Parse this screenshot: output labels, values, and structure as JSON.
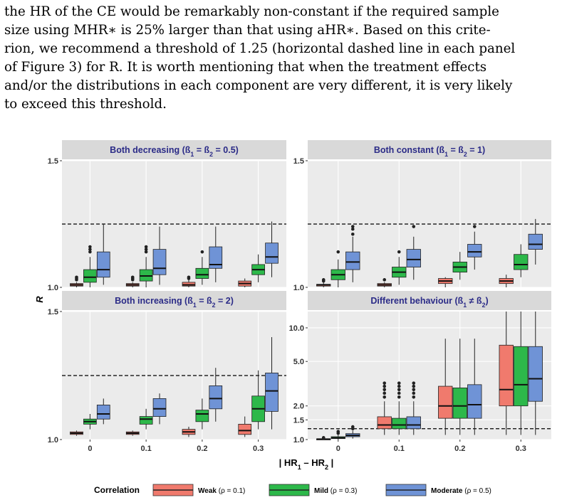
{
  "text_lines": [
    "the HR of the CE would be remarkably non-constant if the required sample",
    "size using MHR∗ is 25% larger than that using aHR∗. Based on this crite-",
    "rion, we recommend a threshold of 1.25 (horizontal dashed line in each panel",
    "of Figure 3) for R. It is worth mentioning that when the treatment effects",
    "and/or the distributions in each component are very different, it is very likely",
    "to exceed this threshold."
  ],
  "colors": {
    "weak": "#f07a6d",
    "mild": "#2db84a",
    "moderate": "#6f93d6",
    "panel_bg": "#ebebeb",
    "strip_bg": "#d9d9d9",
    "strip_text": "#2b2b87",
    "grid": "#ffffff"
  },
  "chart_data": {
    "type": "boxplot",
    "xlabel": "| HR1 – HR2 |",
    "ylabel": "R",
    "threshold": 1.25,
    "x_categories": [
      "0",
      "0.1",
      "0.2",
      "0.3"
    ],
    "legend": {
      "title": "Correlation",
      "position": "bottom",
      "entries": [
        {
          "key": "weak",
          "label": "Weak",
          "sublabel": "(ρ = 0.1)"
        },
        {
          "key": "mild",
          "label": "Mild",
          "sublabel": "(ρ = 0.3)"
        },
        {
          "key": "moderate",
          "label": "Moderate",
          "sublabel": "(ρ = 0.5)"
        }
      ]
    },
    "panels": [
      {
        "title": "Both decreasing  (ß1 = ß2 = 0.5)",
        "scale": "linear",
        "ylim": [
          1.0,
          1.5
        ],
        "yticks": [
          {
            "v": 1.0,
            "label": "1.0"
          },
          {
            "v": 1.5,
            "label": "1.5"
          }
        ],
        "show_xticks": false,
        "groups": [
          {
            "x": "0",
            "boxes": [
              {
                "series": "weak",
                "whislo": 1.0,
                "q1": 1.005,
                "med": 1.01,
                "q3": 1.015,
                "whishi": 1.02,
                "outliers": [
                  1.03,
                  1.035,
                  1.04
                ]
              },
              {
                "series": "mild",
                "whislo": 1.0,
                "q1": 1.02,
                "med": 1.04,
                "q3": 1.07,
                "whishi": 1.12,
                "outliers": [
                  1.14,
                  1.15,
                  1.16
                ]
              },
              {
                "series": "moderate",
                "whislo": 1.01,
                "q1": 1.04,
                "med": 1.07,
                "q3": 1.14,
                "whishi": 1.25,
                "outliers": []
              }
            ]
          },
          {
            "x": "0.1",
            "boxes": [
              {
                "series": "weak",
                "whislo": 1.0,
                "q1": 1.005,
                "med": 1.01,
                "q3": 1.015,
                "whishi": 1.02,
                "outliers": [
                  1.03,
                  1.035,
                  1.04
                ]
              },
              {
                "series": "mild",
                "whislo": 1.0,
                "q1": 1.025,
                "med": 1.045,
                "q3": 1.07,
                "whishi": 1.12,
                "outliers": [
                  1.14,
                  1.15,
                  1.16
                ]
              },
              {
                "series": "moderate",
                "whislo": 1.01,
                "q1": 1.05,
                "med": 1.075,
                "q3": 1.15,
                "whishi": 1.24,
                "outliers": []
              }
            ]
          },
          {
            "x": "0.2",
            "boxes": [
              {
                "series": "weak",
                "whislo": 1.0,
                "q1": 1.005,
                "med": 1.01,
                "q3": 1.02,
                "whishi": 1.03,
                "outliers": [
                  1.035,
                  1.04
                ]
              },
              {
                "series": "mild",
                "whislo": 1.01,
                "q1": 1.035,
                "med": 1.05,
                "q3": 1.075,
                "whishi": 1.12,
                "outliers": [
                  1.14
                ]
              },
              {
                "series": "moderate",
                "whislo": 1.02,
                "q1": 1.075,
                "med": 1.09,
                "q3": 1.16,
                "whishi": 1.24,
                "outliers": []
              }
            ]
          },
          {
            "x": "0.3",
            "boxes": [
              {
                "series": "weak",
                "whislo": 1.0,
                "q1": 1.005,
                "med": 1.015,
                "q3": 1.025,
                "whishi": 1.035,
                "outliers": []
              },
              {
                "series": "mild",
                "whislo": 1.02,
                "q1": 1.05,
                "med": 1.07,
                "q3": 1.09,
                "whishi": 1.13,
                "outliers": []
              },
              {
                "series": "moderate",
                "whislo": 1.04,
                "q1": 1.095,
                "med": 1.12,
                "q3": 1.175,
                "whishi": 1.26,
                "outliers": []
              }
            ]
          }
        ]
      },
      {
        "title": "Both constant  (ß1 = ß2 = 1)",
        "scale": "linear",
        "ylim": [
          1.0,
          1.5
        ],
        "yticks": [
          {
            "v": 1.0,
            "label": "1.0"
          },
          {
            "v": 1.5,
            "label": "1.5"
          }
        ],
        "show_xticks": false,
        "groups": [
          {
            "x": "0",
            "boxes": [
              {
                "series": "weak",
                "whislo": 1.0,
                "q1": 1.005,
                "med": 1.01,
                "q3": 1.012,
                "whishi": 1.02,
                "outliers": [
                  1.025,
                  1.03
                ]
              },
              {
                "series": "mild",
                "whislo": 1.0,
                "q1": 1.03,
                "med": 1.05,
                "q3": 1.07,
                "whishi": 1.11,
                "outliers": [
                  1.14
                ]
              },
              {
                "series": "moderate",
                "whislo": 1.02,
                "q1": 1.07,
                "med": 1.1,
                "q3": 1.14,
                "whishi": 1.2,
                "outliers": [
                  1.21,
                  1.23,
                  1.24
                ]
              }
            ]
          },
          {
            "x": "0.1",
            "boxes": [
              {
                "series": "weak",
                "whislo": 1.0,
                "q1": 1.005,
                "med": 1.01,
                "q3": 1.015,
                "whishi": 1.02,
                "outliers": [
                  1.03
                ]
              },
              {
                "series": "mild",
                "whislo": 1.01,
                "q1": 1.04,
                "med": 1.06,
                "q3": 1.08,
                "whishi": 1.12,
                "outliers": [
                  1.14
                ]
              },
              {
                "series": "moderate",
                "whislo": 1.03,
                "q1": 1.08,
                "med": 1.11,
                "q3": 1.15,
                "whishi": 1.2,
                "outliers": [
                  1.24
                ]
              }
            ]
          },
          {
            "x": "0.2",
            "boxes": [
              {
                "series": "weak",
                "whislo": 1.0,
                "q1": 1.015,
                "med": 1.025,
                "q3": 1.035,
                "whishi": 1.04,
                "outliers": []
              },
              {
                "series": "mild",
                "whislo": 1.03,
                "q1": 1.06,
                "med": 1.08,
                "q3": 1.1,
                "whishi": 1.14,
                "outliers": []
              },
              {
                "series": "moderate",
                "whislo": 1.07,
                "q1": 1.12,
                "med": 1.14,
                "q3": 1.17,
                "whishi": 1.22,
                "outliers": [
                  1.24
                ]
              }
            ]
          },
          {
            "x": "0.3",
            "boxes": [
              {
                "series": "weak",
                "whislo": 1.0,
                "q1": 1.015,
                "med": 1.025,
                "q3": 1.035,
                "whishi": 1.05,
                "outliers": []
              },
              {
                "series": "mild",
                "whislo": 1.04,
                "q1": 1.07,
                "med": 1.09,
                "q3": 1.13,
                "whishi": 1.17,
                "outliers": []
              },
              {
                "series": "moderate",
                "whislo": 1.09,
                "q1": 1.15,
                "med": 1.17,
                "q3": 1.21,
                "whishi": 1.27,
                "outliers": []
              }
            ]
          }
        ]
      },
      {
        "title": "Both increasing  (ß1 = ß2 = 2)",
        "scale": "linear",
        "ylim": [
          1.0,
          1.5
        ],
        "yticks": [
          {
            "v": 1.0,
            "label": "1.0"
          },
          {
            "v": 1.5,
            "label": "1.5"
          }
        ],
        "show_xticks": true,
        "groups": [
          {
            "x": "0",
            "boxes": [
              {
                "series": "weak",
                "whislo": 1.015,
                "q1": 1.02,
                "med": 1.025,
                "q3": 1.03,
                "whishi": 1.035,
                "outliers": []
              },
              {
                "series": "mild",
                "whislo": 1.04,
                "q1": 1.06,
                "med": 1.07,
                "q3": 1.08,
                "whishi": 1.1,
                "outliers": []
              },
              {
                "series": "moderate",
                "whislo": 1.06,
                "q1": 1.08,
                "med": 1.1,
                "q3": 1.135,
                "whishi": 1.16,
                "outliers": []
              }
            ]
          },
          {
            "x": "0.1",
            "boxes": [
              {
                "series": "weak",
                "whislo": 1.015,
                "q1": 1.02,
                "med": 1.025,
                "q3": 1.03,
                "whishi": 1.035,
                "outliers": []
              },
              {
                "series": "mild",
                "whislo": 1.04,
                "q1": 1.06,
                "med": 1.08,
                "q3": 1.09,
                "whishi": 1.12,
                "outliers": []
              },
              {
                "series": "moderate",
                "whislo": 1.06,
                "q1": 1.09,
                "med": 1.12,
                "q3": 1.16,
                "whishi": 1.18,
                "outliers": []
              }
            ]
          },
          {
            "x": "0.2",
            "boxes": [
              {
                "series": "weak",
                "whislo": 1.01,
                "q1": 1.02,
                "med": 1.03,
                "q3": 1.04,
                "whishi": 1.05,
                "outliers": []
              },
              {
                "series": "mild",
                "whislo": 1.04,
                "q1": 1.07,
                "med": 1.1,
                "q3": 1.115,
                "whishi": 1.16,
                "outliers": []
              },
              {
                "series": "moderate",
                "whislo": 1.07,
                "q1": 1.12,
                "med": 1.16,
                "q3": 1.21,
                "whishi": 1.28,
                "outliers": []
              }
            ]
          },
          {
            "x": "0.3",
            "boxes": [
              {
                "series": "weak",
                "whislo": 1.01,
                "q1": 1.02,
                "med": 1.035,
                "q3": 1.06,
                "whishi": 1.09,
                "outliers": []
              },
              {
                "series": "mild",
                "whislo": 1.04,
                "q1": 1.07,
                "med": 1.12,
                "q3": 1.17,
                "whishi": 1.27,
                "outliers": []
              },
              {
                "series": "moderate",
                "whislo": 1.04,
                "q1": 1.11,
                "med": 1.19,
                "q3": 1.26,
                "whishi": 1.4,
                "outliers": []
              }
            ]
          }
        ]
      },
      {
        "title": "Different behaviour (ß1 ≠ ß2)",
        "scale": "log",
        "ylim": [
          1.0,
          14.0
        ],
        "yticks": [
          {
            "v": 1.0,
            "label": "1.0"
          },
          {
            "v": 1.5,
            "label": "1.5"
          },
          {
            "v": 2.0,
            "label": "2.0"
          },
          {
            "v": 5.0,
            "label": "5.0"
          },
          {
            "v": 10.0,
            "label": "10.0"
          }
        ],
        "show_xticks": true,
        "groups": [
          {
            "x": "0",
            "boxes": [
              {
                "series": "weak",
                "whislo": 1.0,
                "q1": 1.005,
                "med": 1.01,
                "q3": 1.015,
                "whishi": 1.02,
                "outliers": [
                  1.03,
                  1.04
                ]
              },
              {
                "series": "mild",
                "whislo": 1.0,
                "q1": 1.02,
                "med": 1.035,
                "q3": 1.06,
                "whishi": 1.1,
                "outliers": [
                  1.14,
                  1.18
                ]
              },
              {
                "series": "moderate",
                "whislo": 1.02,
                "q1": 1.06,
                "med": 1.09,
                "q3": 1.13,
                "whishi": 1.2,
                "outliers": [
                  1.25,
                  1.3
                ]
              }
            ]
          },
          {
            "x": "0.1",
            "boxes": [
              {
                "series": "weak",
                "whislo": 1.1,
                "q1": 1.25,
                "med": 1.35,
                "q3": 1.6,
                "whishi": 2.2,
                "outliers": [
                  2.4,
                  2.6,
                  2.8,
                  3.0,
                  3.2
                ]
              },
              {
                "series": "mild",
                "whislo": 1.1,
                "q1": 1.25,
                "med": 1.35,
                "q3": 1.55,
                "whishi": 2.2,
                "outliers": [
                  2.4,
                  2.6,
                  2.8,
                  3.0,
                  3.2
                ]
              },
              {
                "series": "moderate",
                "whislo": 1.1,
                "q1": 1.25,
                "med": 1.35,
                "q3": 1.6,
                "whishi": 2.2,
                "outliers": [
                  2.4,
                  2.6,
                  2.8,
                  3.0,
                  3.2
                ]
              }
            ]
          },
          {
            "x": "0.2",
            "boxes": [
              {
                "series": "weak",
                "whislo": 1.1,
                "q1": 1.55,
                "med": 2.0,
                "q3": 3.0,
                "whishi": 8.0,
                "outliers": []
              },
              {
                "series": "mild",
                "whislo": 1.1,
                "q1": 1.55,
                "med": 2.0,
                "q3": 2.9,
                "whishi": 8.0,
                "outliers": []
              },
              {
                "series": "moderate",
                "whislo": 1.1,
                "q1": 1.55,
                "med": 2.05,
                "q3": 3.1,
                "whishi": 8.0,
                "outliers": []
              }
            ]
          },
          {
            "x": "0.3",
            "boxes": [
              {
                "series": "weak",
                "whislo": 1.1,
                "q1": 2.0,
                "med": 2.8,
                "q3": 7.0,
                "whishi": 14.0,
                "outliers": []
              },
              {
                "series": "mild",
                "whislo": 1.1,
                "q1": 2.0,
                "med": 3.1,
                "q3": 6.8,
                "whishi": 14.0,
                "outliers": []
              },
              {
                "series": "moderate",
                "whislo": 1.1,
                "q1": 2.2,
                "med": 3.5,
                "q3": 6.8,
                "whishi": 14.0,
                "outliers": []
              }
            ]
          }
        ]
      }
    ]
  }
}
